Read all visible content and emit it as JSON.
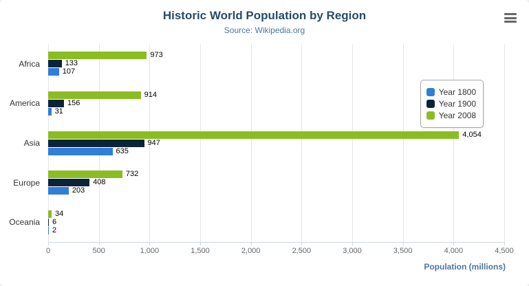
{
  "chart_data": {
    "type": "bar",
    "title": "Historic World Population by Region",
    "subtitle": "Source: Wikipedia.org",
    "categories": [
      "Africa",
      "America",
      "Asia",
      "Europe",
      "Oceania"
    ],
    "series": [
      {
        "name": "Year 1800",
        "color": "#2f7ed8",
        "values": [
          107,
          31,
          635,
          203,
          2
        ]
      },
      {
        "name": "Year 1900",
        "color": "#0d233a",
        "values": [
          133,
          156,
          947,
          408,
          6
        ]
      },
      {
        "name": "Year 2008",
        "color": "#8bbc21",
        "values": [
          973,
          914,
          4054,
          732,
          34
        ]
      }
    ],
    "bar_order_top_to_bottom": [
      "Year 2008",
      "Year 1900",
      "Year 1800"
    ],
    "xlabel": "Population (millions)",
    "xlim": [
      0,
      4500
    ],
    "x_ticks": [
      0,
      500,
      1000,
      1500,
      2000,
      2500,
      3000,
      3500,
      4000,
      4500
    ],
    "grid": true,
    "legend": {
      "position": "right",
      "items": [
        "Year 1800",
        "Year 1900",
        "Year 2008"
      ]
    }
  },
  "ui": {
    "menu_icon": "hamburger"
  },
  "colors": {
    "title": "#274b6d",
    "subtitle": "#4d759e",
    "axis_title": "#4d759e",
    "tick_label": "#666666",
    "category_label": "#333333",
    "data_label": "#000000",
    "grid_line": "#e6e6e6",
    "axis_line": "#ccd6eb",
    "legend_border": "#a6a6a6",
    "background": "#ffffff"
  }
}
